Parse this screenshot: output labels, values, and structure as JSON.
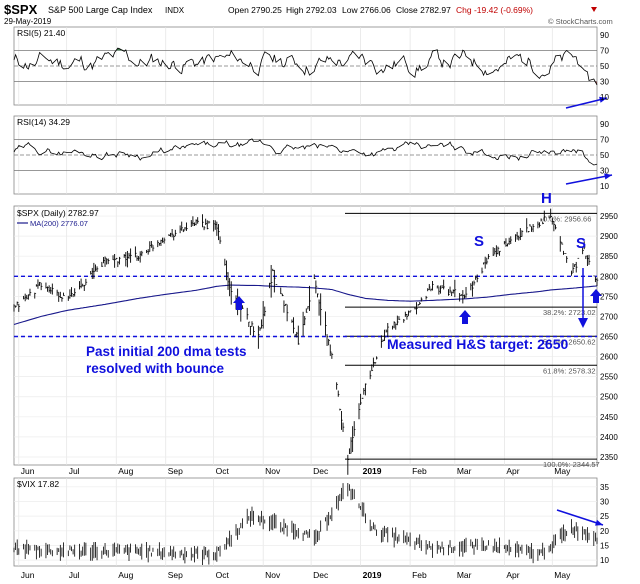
{
  "header": {
    "symbol": "$SPX",
    "name": "S&P 500 Large Cap Index",
    "exchange": "INDX",
    "date": "29-May-2019",
    "open": "Open 2790.25",
    "high": "High 2792.03",
    "low": "Low 2766.06",
    "close": "Close 2782.97",
    "chg": "Chg -19.42 (-0.69%)",
    "watermark": "© StockCharts.com"
  },
  "colors": {
    "price": "#000000",
    "ma": "#1a1a8c",
    "annotation": "#1010dd",
    "rsi_over": "#3d7a4a",
    "rsi_under": "#8a4848",
    "fib_line": "#000000"
  },
  "chart_data": [
    {
      "type": "line",
      "panel": "rsi5",
      "legend": "RSI(5) 21.40",
      "yticks": [
        "90",
        "70",
        "50",
        "30",
        "10"
      ],
      "ylim": [
        0,
        100
      ],
      "levels": [
        70,
        50,
        30
      ],
      "series": [
        {
          "name": "RSI(5)",
          "last": 21.4
        }
      ]
    },
    {
      "type": "line",
      "panel": "rsi14",
      "legend": "RSI(14) 34.29",
      "yticks": [
        "90",
        "70",
        "50",
        "30",
        "10"
      ],
      "ylim": [
        0,
        100
      ],
      "levels": [
        70,
        50,
        30
      ],
      "series": [
        {
          "name": "RSI(14)",
          "last": 34.29
        }
      ]
    },
    {
      "type": "line",
      "panel": "price",
      "legend": [
        "$SPX (Daily) 2782.97",
        "MA(200) 2776.07"
      ],
      "yticks": [
        "2950",
        "2900",
        "2850",
        "2800",
        "2750",
        "2700",
        "2650",
        "2600",
        "2550",
        "2500",
        "2450",
        "2400",
        "2350"
      ],
      "ylim": [
        2330,
        2975
      ],
      "x": [
        "2018-05-29",
        "2018-06-15",
        "2018-07-01",
        "2018-07-25",
        "2018-08-15",
        "2018-09-01",
        "2018-09-20",
        "2018-10-03",
        "2018-10-11",
        "2018-10-29",
        "2018-11-07",
        "2018-11-23",
        "2018-12-03",
        "2018-12-14",
        "2018-12-24",
        "2019-01-04",
        "2019-01-18",
        "2019-02-01",
        "2019-02-15",
        "2019-03-08",
        "2019-03-21",
        "2019-04-05",
        "2019-04-23",
        "2019-04-30",
        "2019-05-13",
        "2019-05-21",
        "2019-05-29"
      ],
      "series": [
        {
          "name": "$SPX",
          "values": [
            2720,
            2780,
            2740,
            2840,
            2850,
            2900,
            2930,
            2925,
            2770,
            2650,
            2810,
            2640,
            2790,
            2600,
            2350,
            2530,
            2670,
            2705,
            2775,
            2750,
            2840,
            2890,
            2935,
            2945,
            2810,
            2865,
            2783
          ]
        },
        {
          "name": "MA(200)",
          "values": [
            2680,
            2700,
            2715,
            2730,
            2745,
            2755,
            2765,
            2775,
            2778,
            2777,
            2775,
            2773,
            2771,
            2767,
            2755,
            2745,
            2740,
            2738,
            2740,
            2744,
            2748,
            2755,
            2762,
            2766,
            2770,
            2773,
            2776
          ]
        }
      ],
      "hlines": [
        2800,
        2650
      ],
      "fib_levels": [
        {
          "label": "0.0%: 2956.66",
          "value": 2956.66
        },
        {
          "label": "38.2%: 2723.02",
          "value": 2723.02
        },
        {
          "label": "50.0%: 2650.62",
          "value": 2650.62
        },
        {
          "label": "61.8%: 2578.32",
          "value": 2578.32
        },
        {
          "label": "100.0%: 2344.57",
          "value": 2344.57
        }
      ],
      "annotations": [
        "S",
        "H",
        "S",
        "Past initial 200 dma tests",
        "resolved with bounce",
        "Measured H&S target: 2650"
      ]
    },
    {
      "type": "line",
      "panel": "vix",
      "legend": "$VIX 17.82",
      "yticks": [
        "35",
        "30",
        "25",
        "20",
        "15",
        "10"
      ],
      "ylim": [
        8,
        38
      ],
      "x": [
        "2018-05-29",
        "2018-07-01",
        "2018-08-15",
        "2018-09-20",
        "2018-10-03",
        "2018-10-24",
        "2018-11-23",
        "2018-12-03",
        "2018-12-24",
        "2019-01-10",
        "2019-02-15",
        "2019-03-21",
        "2019-04-23",
        "2019-05-13",
        "2019-05-29"
      ],
      "series": [
        {
          "name": "$VIX",
          "values": [
            14,
            13,
            13,
            12,
            12,
            25,
            20,
            17,
            35,
            20,
            14,
            15,
            12,
            21,
            17.8
          ]
        }
      ]
    }
  ],
  "xaxis": {
    "labels": [
      "Jun",
      "Jul",
      "Aug",
      "Sep",
      "Oct",
      "Nov",
      "Dec",
      "2019",
      "Feb",
      "Mar",
      "Apr",
      "May"
    ],
    "dates": [
      "2018-06-01",
      "2018-07-01",
      "2018-08-01",
      "2018-09-01",
      "2018-10-01",
      "2018-11-01",
      "2018-12-01",
      "2019-01-01",
      "2019-02-01",
      "2019-03-01",
      "2019-04-01",
      "2019-05-01"
    ]
  }
}
